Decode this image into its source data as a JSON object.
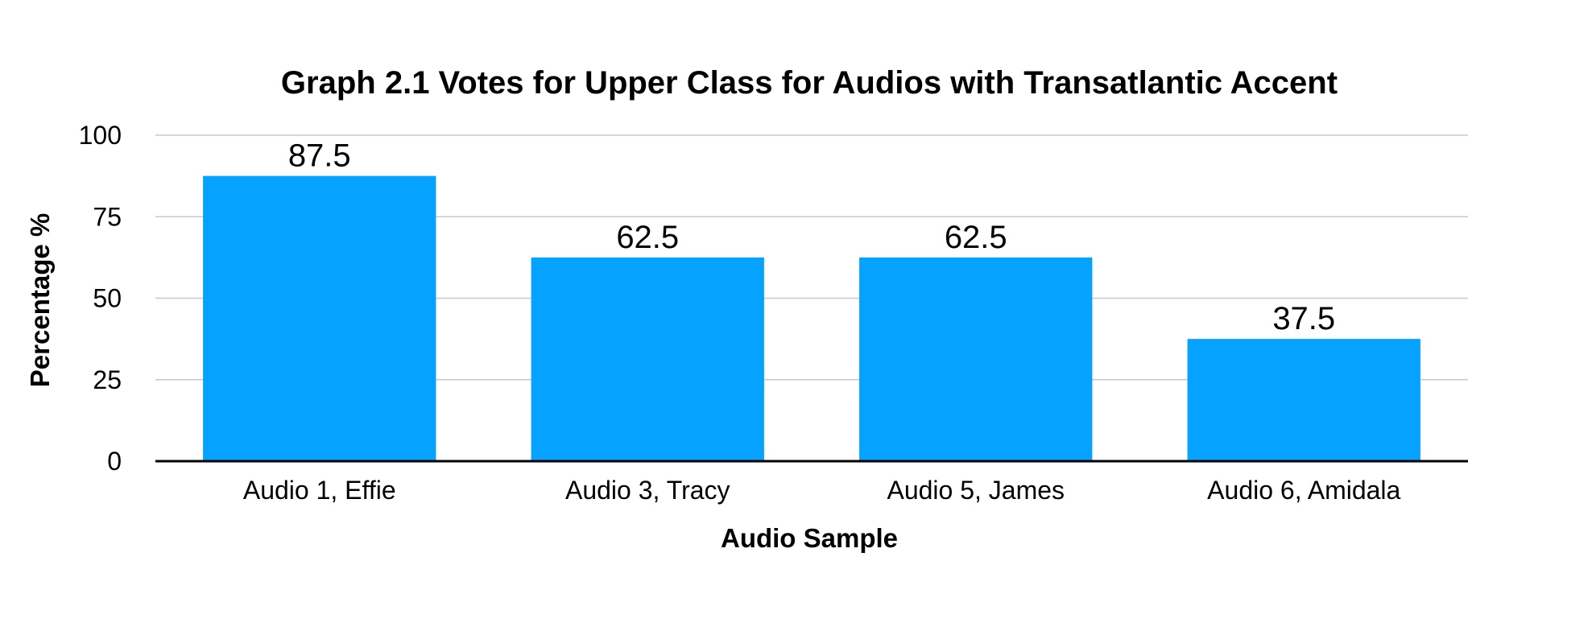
{
  "chart_data": {
    "type": "bar",
    "title": "Graph 2.1 Votes for Upper Class for Audios with Transatlantic Accent",
    "xlabel": "Audio Sample",
    "ylabel": "Percentage %",
    "categories": [
      "Audio 1, Effie",
      "Audio 3, Tracy",
      "Audio 5, James",
      "Audio 6, Amidala"
    ],
    "values": [
      87.5,
      62.5,
      62.5,
      37.5
    ],
    "data_labels": [
      "87.5",
      "62.5",
      "62.5",
      "37.5"
    ],
    "ylim": [
      0,
      100
    ],
    "yticks": [
      0,
      25,
      50,
      75,
      100
    ],
    "ytick_labels": [
      "0",
      "25",
      "50",
      "75",
      "100"
    ],
    "grid": true,
    "legend": "none",
    "bar_color": "#05a2ff"
  }
}
